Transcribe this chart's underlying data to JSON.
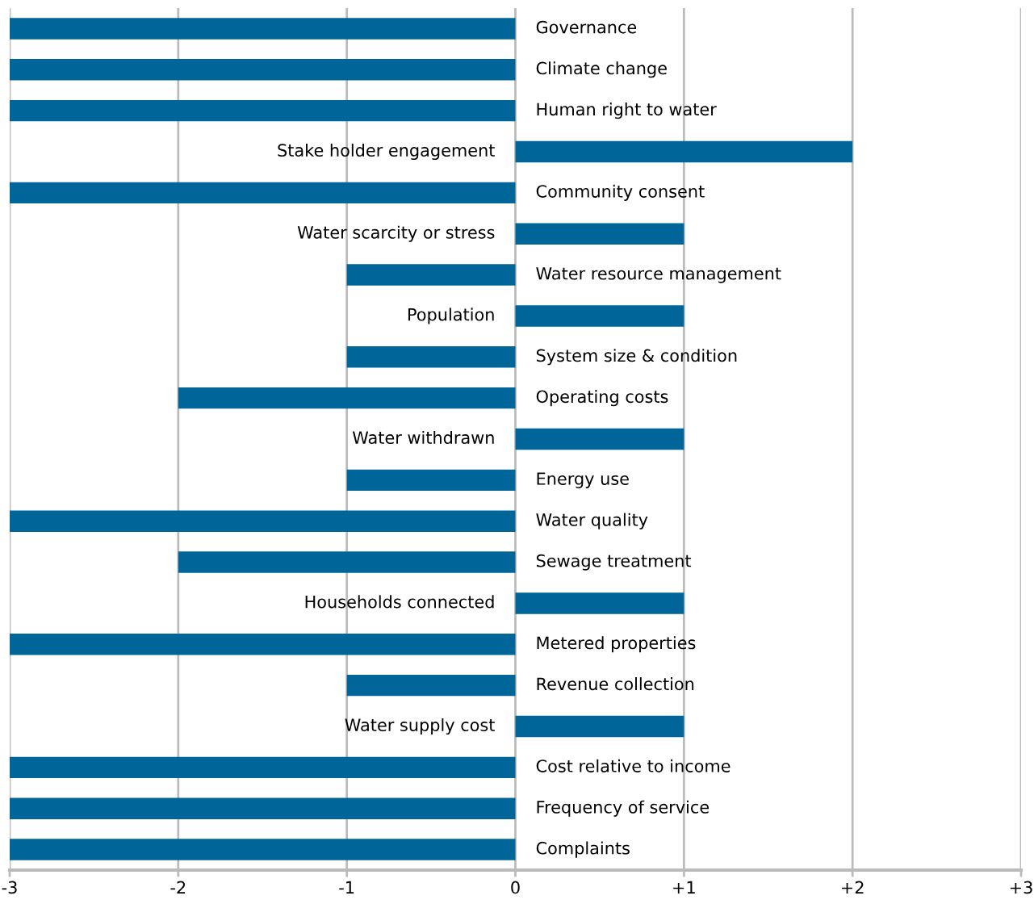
{
  "chart_data": {
    "type": "bar",
    "orientation": "horizontal",
    "categories": [
      "Governance",
      "Climate change",
      "Human right to water",
      "Stake holder engagement",
      "Community consent",
      "Water scarcity or stress",
      "Water resource management",
      "Population",
      "System size & condition",
      "Operating costs",
      "Water withdrawn",
      "Energy use",
      "Water quality",
      "Sewage treatment",
      "Households connected",
      "Metered properties",
      "Revenue collection",
      "Water supply cost",
      "Cost relative to income",
      "Frequency of service",
      "Complaints"
    ],
    "values": [
      -3,
      -3,
      -3,
      2,
      -3,
      1,
      -1,
      1,
      -1,
      -2,
      1,
      -1,
      -3,
      -2,
      1,
      -3,
      -1,
      1,
      -3,
      -3,
      -3
    ],
    "color": "#006699",
    "xlim": [
      -3,
      3
    ],
    "xticks": [
      -3,
      -2,
      -1,
      0,
      {
        "value": 1,
        "label": "+1"
      },
      {
        "value": 2,
        "label": "+2"
      },
      {
        "value": 3,
        "label": "+3"
      }
    ],
    "grid": "x"
  }
}
